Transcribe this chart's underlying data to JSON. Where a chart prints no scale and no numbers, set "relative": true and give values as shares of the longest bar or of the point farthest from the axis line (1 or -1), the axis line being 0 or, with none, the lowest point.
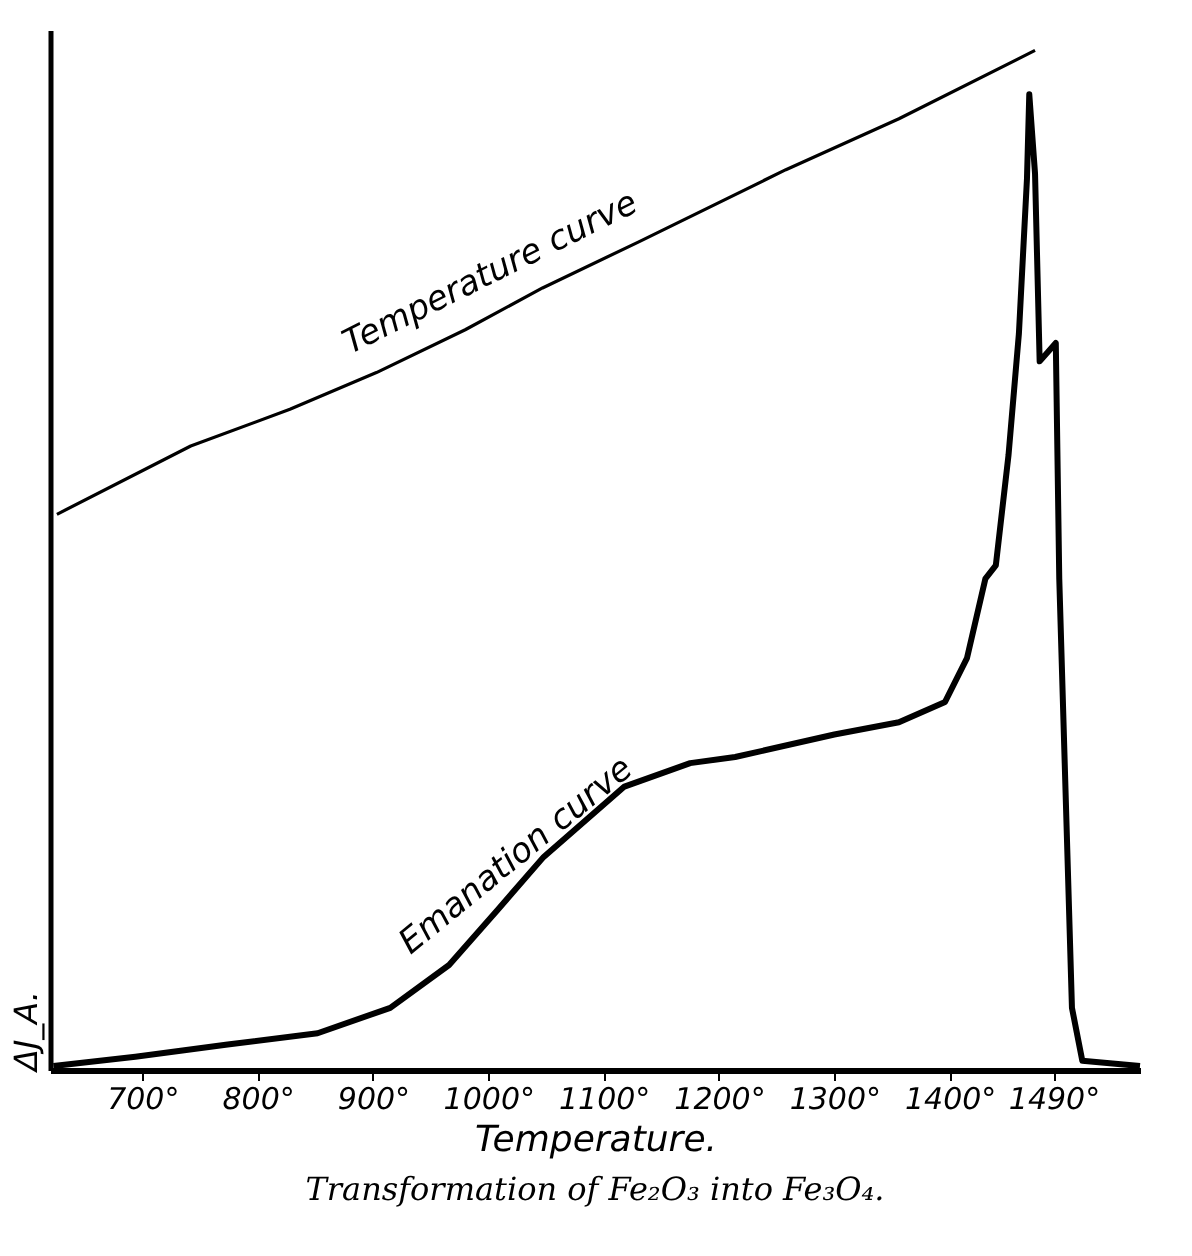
{
  "chart_data": {
    "type": "line",
    "title": "Transformation of Fe₂O₃ into Fe₃O₄.",
    "xlabel": "Temperature.",
    "ylabel": "ΔJ_A.",
    "relative": true,
    "xlim": [
      620,
      1565
    ],
    "xticks": [
      {
        "value": 700,
        "label": "700°"
      },
      {
        "value": 800,
        "label": "800°"
      },
      {
        "value": 900,
        "label": "900°"
      },
      {
        "value": 1000,
        "label": "1000°"
      },
      {
        "value": 1100,
        "label": "1100°"
      },
      {
        "value": 1200,
        "label": "1200°"
      },
      {
        "value": 1300,
        "label": "1300°"
      },
      {
        "value": 1400,
        "label": "1400°"
      },
      {
        "value": 1490,
        "label": "1490°"
      }
    ],
    "grid": false,
    "marker": "none",
    "line_style": "solid",
    "series": [
      {
        "name": "Temperature curve",
        "color": "#000000",
        "x": [
          626,
          742,
          828,
          903,
          980,
          1047,
          1130,
          1258,
          1356,
          1474
        ],
        "values": [
          0.545,
          0.612,
          0.648,
          0.684,
          0.726,
          0.767,
          0.812,
          0.883,
          0.933,
          1.0
        ]
      },
      {
        "name": "Emanation curve",
        "color": "#000000",
        "x": [
          623,
          694,
          774,
          852,
          915,
          966,
          1008,
          1048,
          1118,
          1175,
          1214,
          1300,
          1356,
          1396,
          1415,
          1431,
          1440,
          1451,
          1460,
          1467,
          1469,
          1474,
          1478,
          1492,
          1495,
          1506,
          1515,
          1565
        ],
        "values": [
          0.004,
          0.013,
          0.025,
          0.036,
          0.061,
          0.103,
          0.157,
          0.209,
          0.278,
          0.301,
          0.307,
          0.329,
          0.341,
          0.361,
          0.404,
          0.482,
          0.495,
          0.603,
          0.722,
          0.874,
          0.957,
          0.879,
          0.695,
          0.713,
          0.482,
          0.061,
          0.009,
          0.004
        ]
      }
    ]
  }
}
